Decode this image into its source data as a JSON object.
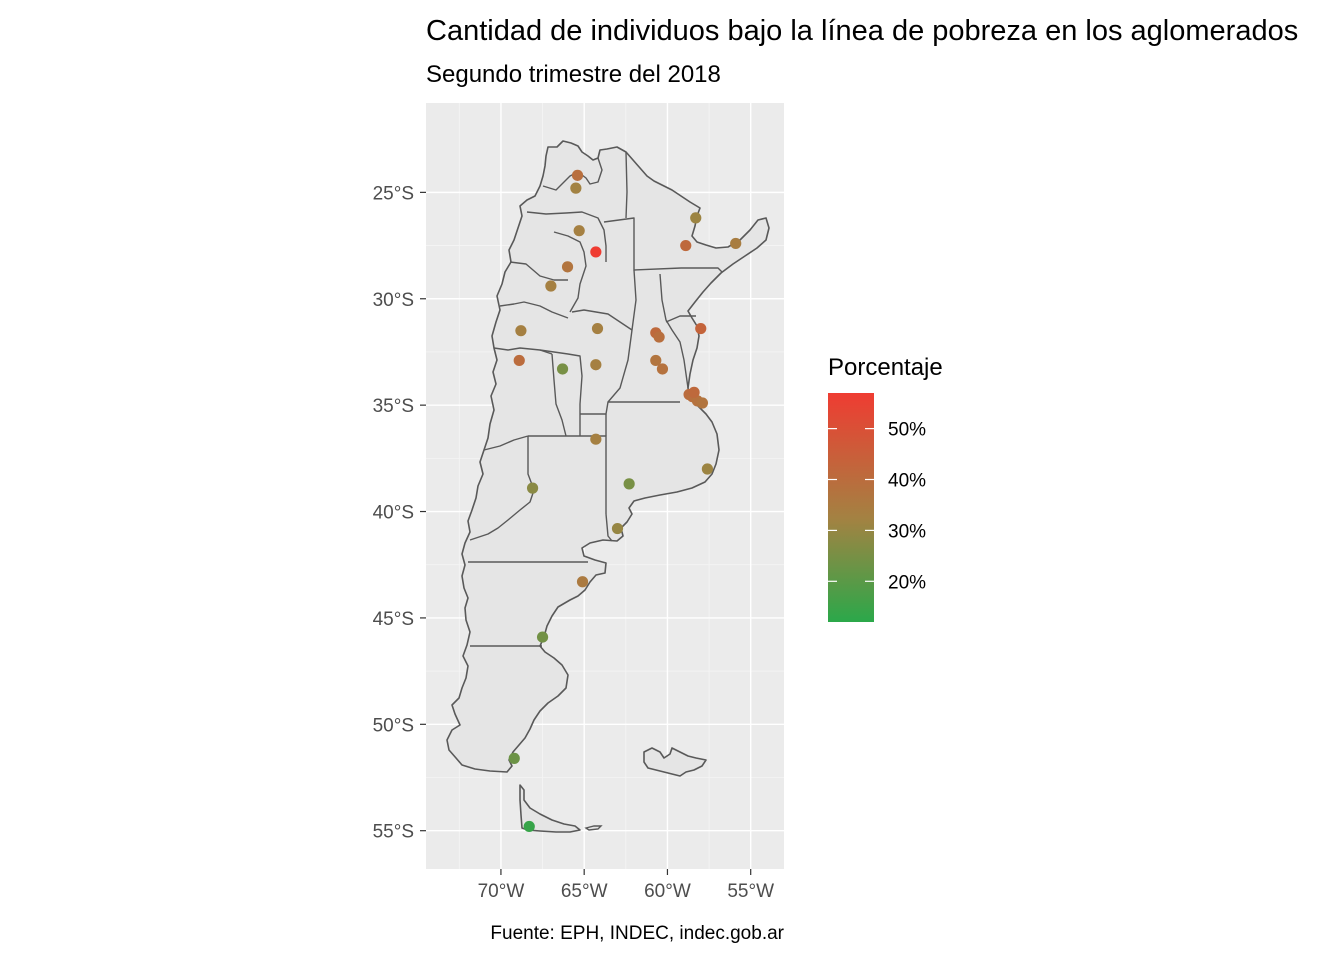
{
  "title": "Cantidad de individuos bajo la línea de pobreza en los aglomerados",
  "subtitle": "Segundo trimestre del 2018",
  "caption": "Fuente: EPH, INDEC, indec.gob.ar",
  "chart_data": {
    "type": "map",
    "projection": "lon-lat",
    "xlim": [
      -74.5,
      -53.0
    ],
    "ylim": [
      -56.8,
      -20.8
    ],
    "x_ticks": [
      {
        "value": -70,
        "label": "70°W"
      },
      {
        "value": -65,
        "label": "65°W"
      },
      {
        "value": -60,
        "label": "60°W"
      },
      {
        "value": -55,
        "label": "55°W"
      }
    ],
    "y_ticks": [
      {
        "value": -25,
        "label": "25°S"
      },
      {
        "value": -30,
        "label": "30°S"
      },
      {
        "value": -35,
        "label": "35°S"
      },
      {
        "value": -40,
        "label": "40°S"
      },
      {
        "value": -45,
        "label": "45°S"
      },
      {
        "value": -50,
        "label": "50°S"
      },
      {
        "value": -55,
        "label": "55°S"
      }
    ],
    "legend": {
      "title": "Porcentaje",
      "placement": "right",
      "low_color": "#2ba84a",
      "mid_color": "#a38242",
      "high_color": "#ef3c32",
      "range": [
        12,
        57
      ],
      "breaks": [
        {
          "value": 20,
          "label": "20%"
        },
        {
          "value": 30,
          "label": "30%"
        },
        {
          "value": 40,
          "label": "40%"
        },
        {
          "value": 50,
          "label": "50%"
        }
      ]
    },
    "points": [
      {
        "lon": -65.4,
        "lat": -24.2,
        "value": 39
      },
      {
        "lon": -65.5,
        "lat": -24.8,
        "value": 32
      },
      {
        "lon": -65.3,
        "lat": -26.8,
        "value": 33
      },
      {
        "lon": -64.3,
        "lat": -27.8,
        "value": 57
      },
      {
        "lon": -66.0,
        "lat": -28.5,
        "value": 37
      },
      {
        "lon": -67.0,
        "lat": -29.4,
        "value": 33
      },
      {
        "lon": -58.3,
        "lat": -26.2,
        "value": 31
      },
      {
        "lon": -58.9,
        "lat": -27.5,
        "value": 41
      },
      {
        "lon": -55.9,
        "lat": -27.4,
        "value": 34
      },
      {
        "lon": -68.8,
        "lat": -31.5,
        "value": 33
      },
      {
        "lon": -64.2,
        "lat": -31.4,
        "value": 33
      },
      {
        "lon": -60.7,
        "lat": -31.6,
        "value": 41
      },
      {
        "lon": -60.5,
        "lat": -31.8,
        "value": 39
      },
      {
        "lon": -58.0,
        "lat": -31.4,
        "value": 43
      },
      {
        "lon": -68.9,
        "lat": -32.9,
        "value": 40
      },
      {
        "lon": -66.3,
        "lat": -33.3,
        "value": 25
      },
      {
        "lon": -64.3,
        "lat": -33.1,
        "value": 33
      },
      {
        "lon": -60.7,
        "lat": -32.9,
        "value": 37
      },
      {
        "lon": -60.3,
        "lat": -33.3,
        "value": 38
      },
      {
        "lon": -58.7,
        "lat": -34.5,
        "value": 40
      },
      {
        "lon": -58.5,
        "lat": -34.6,
        "value": 39
      },
      {
        "lon": -58.2,
        "lat": -34.8,
        "value": 38
      },
      {
        "lon": -57.9,
        "lat": -34.9,
        "value": 37
      },
      {
        "lon": -58.4,
        "lat": -34.4,
        "value": 41
      },
      {
        "lon": -64.3,
        "lat": -36.6,
        "value": 33
      },
      {
        "lon": -57.6,
        "lat": -38.0,
        "value": 31
      },
      {
        "lon": -62.3,
        "lat": -38.7,
        "value": 25
      },
      {
        "lon": -68.1,
        "lat": -38.9,
        "value": 28
      },
      {
        "lon": -63.0,
        "lat": -40.8,
        "value": 30
      },
      {
        "lon": -65.1,
        "lat": -43.3,
        "value": 35
      },
      {
        "lon": -67.5,
        "lat": -45.9,
        "value": 24
      },
      {
        "lon": -69.2,
        "lat": -51.6,
        "value": 23
      },
      {
        "lon": -68.3,
        "lat": -54.8,
        "value": 14
      }
    ]
  }
}
